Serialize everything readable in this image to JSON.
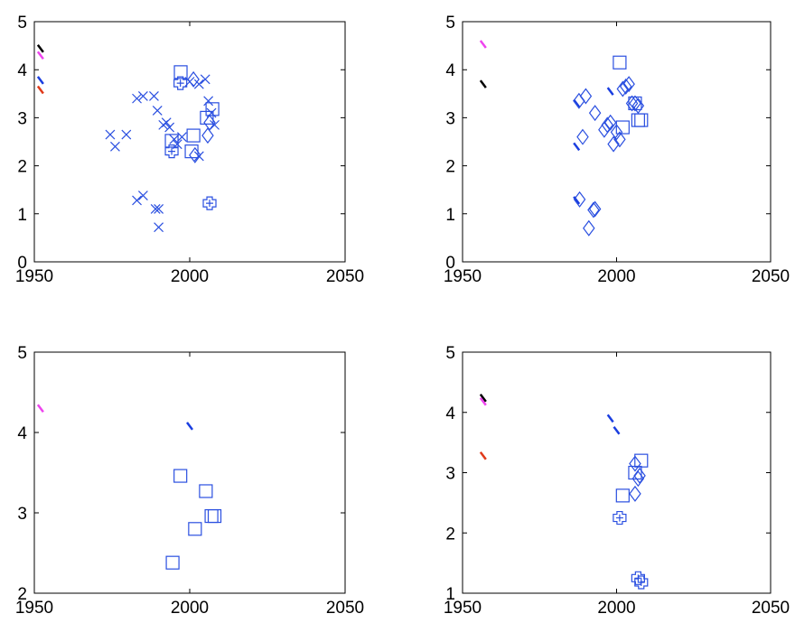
{
  "chart_data": [
    {
      "type": "scatter",
      "xlim": [
        1950,
        2050
      ],
      "xticks": [
        1950,
        2000,
        2050
      ],
      "ylim": [
        0,
        5
      ],
      "yticks": [
        0,
        1,
        2,
        3,
        4,
        5
      ],
      "series": [
        {
          "color": "#000000",
          "marker": "tick",
          "x": [
            1952
          ],
          "values": [
            4.44
          ]
        },
        {
          "color": "#ee44ee",
          "marker": "tick",
          "x": [
            1952
          ],
          "values": [
            4.3
          ]
        },
        {
          "color": "#1a3ee0",
          "marker": "tick",
          "x": [
            1952
          ],
          "values": [
            3.78
          ]
        },
        {
          "color": "#e03a1a",
          "marker": "tick",
          "x": [
            1952
          ],
          "values": [
            3.58
          ]
        },
        {
          "color": "#2a4fe0",
          "marker": "x",
          "x": [
            1974.4,
            1976,
            1979.6,
            1983,
            1985,
            1988.5,
            1989.6,
            1991.5,
            1992.5,
            1993.5,
            1995,
            1996,
            1997.5,
            2000,
            2003,
            2005,
            2006,
            2007,
            2008,
            2003,
            1983,
            1985,
            1989,
            1990,
            1990
          ],
          "values": [
            2.65,
            2.4,
            2.65,
            3.4,
            3.45,
            3.45,
            3.15,
            2.85,
            2.9,
            2.8,
            2.55,
            2.45,
            2.6,
            3.75,
            3.7,
            3.8,
            3.35,
            3.1,
            2.85,
            2.2,
            1.28,
            1.38,
            1.1,
            1.1,
            0.72
          ]
        },
        {
          "color": "#2a4fe0",
          "marker": "square",
          "x": [
            1997.1,
            2001.2,
            1994.2,
            2000.6,
            2005.5,
            2007.3
          ],
          "values": [
            3.95,
            2.63,
            2.52,
            2.3,
            3.0,
            3.18
          ]
        },
        {
          "color": "#2a4fe0",
          "marker": "diamond",
          "x": [
            2001.2,
            2005.8,
            2001.7,
            2006.4
          ],
          "values": [
            3.8,
            2.63,
            2.22,
            2.9
          ]
        },
        {
          "color": "#2a4fe0",
          "marker": "circle",
          "x": [
            1997,
            1994.2,
            2006.4
          ],
          "values": [
            3.72,
            2.3,
            1.22
          ]
        }
      ]
    },
    {
      "type": "scatter",
      "xlim": [
        1950,
        2050
      ],
      "xticks": [
        1950,
        2000,
        2050
      ],
      "ylim": [
        0,
        5
      ],
      "yticks": [
        0,
        1,
        2,
        3,
        4,
        5
      ],
      "series": [
        {
          "color": "#ee44ee",
          "marker": "tick",
          "x": [
            1956.7
          ],
          "values": [
            4.53
          ]
        },
        {
          "color": "#000000",
          "marker": "tick",
          "x": [
            1956.7
          ],
          "values": [
            3.7
          ]
        },
        {
          "color": "#1a3ee0",
          "marker": "tick",
          "x": [
            1987,
            1987,
            1987,
            1998
          ],
          "values": [
            3.3,
            2.4,
            1.28,
            3.55
          ]
        },
        {
          "color": "#2a4fe0",
          "marker": "diamond",
          "x": [
            1987.8,
            1990,
            1993,
            1989,
            1988,
            1992.5,
            1993,
            1991,
            1996,
            1997,
            1998,
            1999,
            2000,
            2001,
            2002,
            2003,
            2004,
            2005,
            2007,
            2006
          ],
          "values": [
            3.35,
            3.45,
            3.1,
            2.6,
            1.3,
            1.08,
            1.1,
            0.7,
            2.75,
            2.85,
            2.9,
            2.45,
            2.7,
            2.55,
            3.6,
            3.65,
            3.7,
            3.3,
            3.25,
            3.3
          ]
        },
        {
          "color": "#2a4fe0",
          "marker": "square",
          "x": [
            2001,
            2002,
            2006,
            2007,
            2008
          ],
          "values": [
            4.15,
            2.8,
            3.3,
            2.95,
            2.95
          ]
        }
      ]
    },
    {
      "type": "scatter",
      "xlim": [
        1950,
        2050
      ],
      "xticks": [
        1950,
        2000,
        2050
      ],
      "ylim": [
        2,
        5
      ],
      "yticks": [
        2,
        3,
        4,
        5
      ],
      "series": [
        {
          "color": "#ee44ee",
          "marker": "tick",
          "x": [
            1952
          ],
          "values": [
            4.3
          ]
        },
        {
          "color": "#1a3ee0",
          "marker": "tick",
          "x": [
            2000
          ],
          "values": [
            4.08
          ]
        },
        {
          "color": "#2a4fe0",
          "marker": "square",
          "x": [
            1997,
            2005.2,
            2001.7,
            2007,
            1994.5,
            2008
          ],
          "values": [
            3.46,
            3.27,
            2.8,
            2.96,
            2.38,
            2.96
          ]
        }
      ]
    },
    {
      "type": "scatter",
      "xlim": [
        1950,
        2050
      ],
      "xticks": [
        1950,
        2000,
        2050
      ],
      "ylim": [
        1,
        5
      ],
      "yticks": [
        1,
        2,
        3,
        4,
        5
      ],
      "series": [
        {
          "color": "#000000",
          "marker": "tick",
          "x": [
            1956.7
          ],
          "values": [
            4.24
          ]
        },
        {
          "color": "#ee44ee",
          "marker": "tick",
          "x": [
            1956.7
          ],
          "values": [
            4.18
          ]
        },
        {
          "color": "#e03a1a",
          "marker": "tick",
          "x": [
            1956.7
          ],
          "values": [
            3.28
          ]
        },
        {
          "color": "#1a3ee0",
          "marker": "tick",
          "x": [
            1998,
            2000
          ],
          "values": [
            3.9,
            3.7
          ]
        },
        {
          "color": "#2a4fe0",
          "marker": "diamond",
          "x": [
            2006,
            2007.5,
            2006,
            2007
          ],
          "values": [
            3.15,
            2.95,
            2.65,
            2.9
          ]
        },
        {
          "color": "#2a4fe0",
          "marker": "square",
          "x": [
            2002,
            2006,
            2008
          ],
          "values": [
            2.62,
            3.0,
            3.2
          ]
        },
        {
          "color": "#2a4fe0",
          "marker": "circle",
          "x": [
            2001,
            2007,
            2008
          ],
          "values": [
            2.25,
            1.25,
            1.18
          ]
        }
      ]
    }
  ]
}
